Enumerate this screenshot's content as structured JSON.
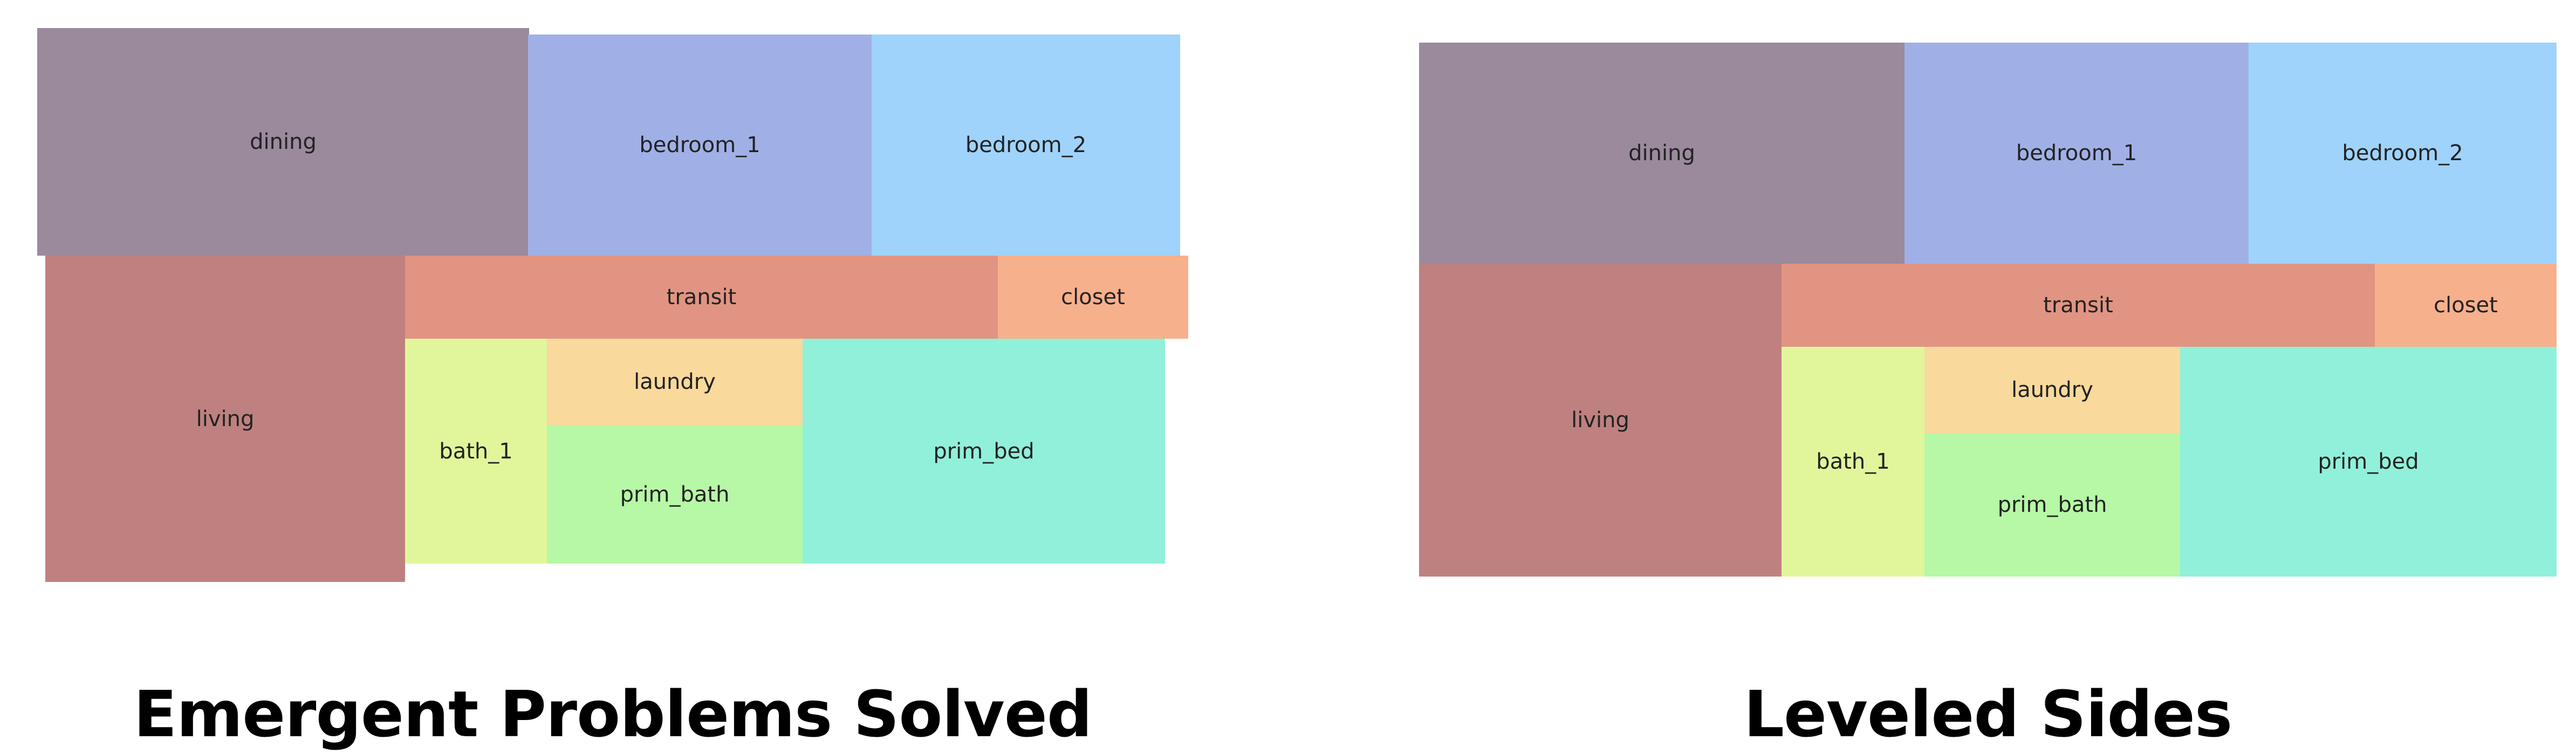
{
  "colors": {
    "dining": "#9a8a9c",
    "bedroom_1": "#a0b0e6",
    "bedroom_2": "#9fd3fb",
    "transit": "#e19482",
    "closet": "#f7b08c",
    "living": "#be8180",
    "bath_1": "#e1f69b",
    "laundry": "#f9d99c",
    "prim_bath": "#b6f8a5",
    "prim_bed": "#90f0d9"
  },
  "left_panel": {
    "caption": "Emergent Problems Solved",
    "rooms": {
      "dining": "dining",
      "bedroom_1": "bedroom_1",
      "bedroom_2": "bedroom_2",
      "transit": "transit",
      "closet": "closet",
      "living": "living",
      "bath_1": "bath_1",
      "laundry": "laundry",
      "prim_bath": "prim_bath",
      "prim_bed": "prim_bed"
    }
  },
  "right_panel": {
    "caption": "Leveled Sides",
    "rooms": {
      "dining": "dining",
      "bedroom_1": "bedroom_1",
      "bedroom_2": "bedroom_2",
      "transit": "transit",
      "closet": "closet",
      "living": "living",
      "bath_1": "bath_1",
      "laundry": "laundry",
      "prim_bath": "prim_bath",
      "prim_bed": "prim_bed"
    }
  }
}
